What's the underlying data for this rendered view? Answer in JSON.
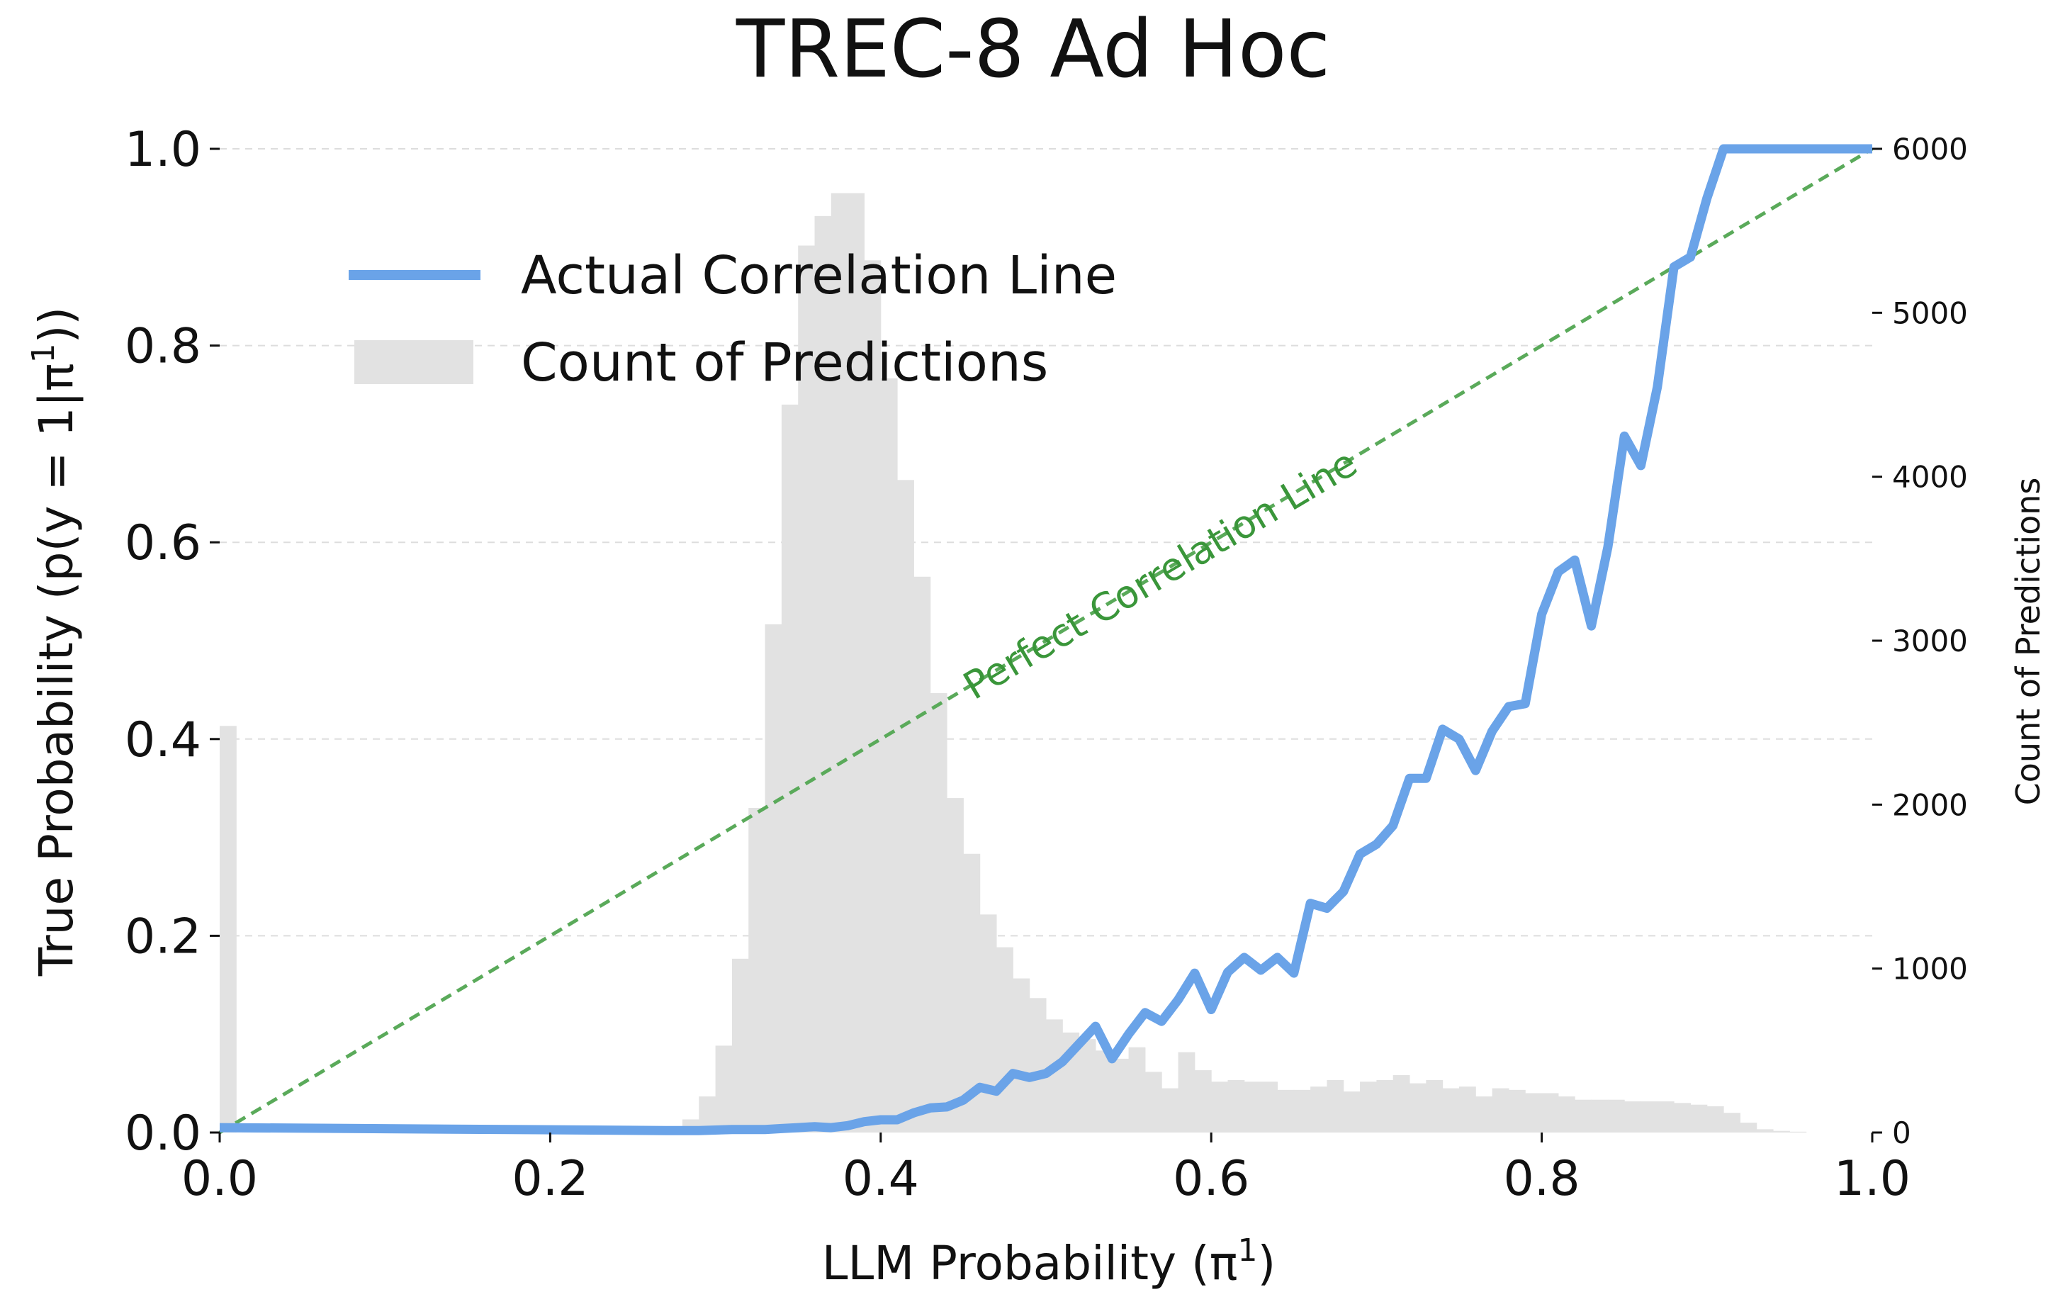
{
  "chart_data": {
    "type": "line",
    "title": "TREC-8 Ad Hoc",
    "xlabel": "LLM Probability (π",
    "xlabel_sup": "1",
    "xlabel_close": ")",
    "ylabel": "True Probability (p(y = 1|π",
    "ylabel_sup": "1",
    "ylabel_close": "))",
    "y2label": "Count of Predictions",
    "xlim": [
      0,
      1
    ],
    "ylim": [
      0,
      1
    ],
    "y2lim": [
      0,
      6000
    ],
    "x_ticks": [
      "0.0",
      "0.2",
      "0.4",
      "0.6",
      "0.8",
      "1.0"
    ],
    "y_ticks": [
      "0.0",
      "0.2",
      "0.4",
      "0.6",
      "0.8",
      "1.0"
    ],
    "y2_ticks": [
      "0",
      "1000",
      "2000",
      "3000",
      "4000",
      "5000",
      "6000"
    ],
    "grid": true,
    "legend": {
      "position": "upper-left",
      "entries": [
        {
          "label": "Actual Correlation Line",
          "kind": "line",
          "color": "#6aa3e8"
        },
        {
          "label": "Count of Predictions",
          "kind": "patch",
          "color": "#e2e2e2"
        }
      ]
    },
    "annotation": {
      "text": "Perfect Correlation Line",
      "x": 0.57,
      "y": 0.565
    },
    "colors": {
      "actual": "#6aa3e8",
      "perfect": "#5aaa5a",
      "histogram": "#e2e2e2",
      "grid": "#dddddd"
    },
    "series": [
      {
        "name": "Actual Correlation Line",
        "x": [
          0.0,
          0.27,
          0.29,
          0.31,
          0.33,
          0.34,
          0.35,
          0.36,
          0.37,
          0.38,
          0.39,
          0.4,
          0.41,
          0.42,
          0.43,
          0.44,
          0.45,
          0.46,
          0.47,
          0.48,
          0.49,
          0.5,
          0.51,
          0.52,
          0.53,
          0.54,
          0.55,
          0.56,
          0.57,
          0.58,
          0.59,
          0.6,
          0.61,
          0.62,
          0.63,
          0.64,
          0.65,
          0.66,
          0.67,
          0.68,
          0.69,
          0.7,
          0.71,
          0.72,
          0.73,
          0.74,
          0.75,
          0.76,
          0.77,
          0.78,
          0.79,
          0.8,
          0.81,
          0.82,
          0.83,
          0.84,
          0.85,
          0.86,
          0.87,
          0.88,
          0.89,
          0.9,
          0.91,
          1.0
        ],
        "y": [
          0.005,
          0.002,
          0.002,
          0.003,
          0.003,
          0.004,
          0.005,
          0.006,
          0.005,
          0.007,
          0.011,
          0.013,
          0.013,
          0.02,
          0.025,
          0.026,
          0.033,
          0.046,
          0.042,
          0.06,
          0.056,
          0.06,
          0.072,
          0.09,
          0.108,
          0.075,
          0.1,
          0.122,
          0.113,
          0.135,
          0.162,
          0.125,
          0.163,
          0.178,
          0.165,
          0.178,
          0.162,
          0.233,
          0.228,
          0.245,
          0.283,
          0.293,
          0.312,
          0.36,
          0.36,
          0.41,
          0.4,
          0.368,
          0.408,
          0.433,
          0.436,
          0.527,
          0.57,
          0.582,
          0.515,
          0.595,
          0.708,
          0.678,
          0.758,
          0.88,
          0.89,
          0.95,
          1.0,
          1.0
        ]
      },
      {
        "name": "Perfect Correlation Line",
        "x": [
          0,
          1
        ],
        "y": [
          0,
          1
        ]
      }
    ],
    "histogram": {
      "name": "Count of Predictions",
      "bin_width": 0.01,
      "bin_starts": [
        0.0,
        0.01,
        0.02,
        0.03,
        0.04,
        0.05,
        0.06,
        0.07,
        0.08,
        0.09,
        0.1,
        0.11,
        0.12,
        0.13,
        0.14,
        0.15,
        0.16,
        0.17,
        0.18,
        0.19,
        0.2,
        0.21,
        0.22,
        0.23,
        0.24,
        0.25,
        0.26,
        0.27,
        0.28,
        0.29,
        0.3,
        0.31,
        0.32,
        0.33,
        0.34,
        0.35,
        0.36,
        0.37,
        0.38,
        0.39,
        0.4,
        0.41,
        0.42,
        0.43,
        0.44,
        0.45,
        0.46,
        0.47,
        0.48,
        0.49,
        0.5,
        0.51,
        0.52,
        0.53,
        0.54,
        0.55,
        0.56,
        0.57,
        0.58,
        0.59,
        0.6,
        0.61,
        0.62,
        0.63,
        0.64,
        0.65,
        0.66,
        0.67,
        0.68,
        0.69,
        0.7,
        0.71,
        0.72,
        0.73,
        0.74,
        0.75,
        0.76,
        0.77,
        0.78,
        0.79,
        0.8,
        0.81,
        0.82,
        0.83,
        0.84,
        0.85,
        0.86,
        0.87,
        0.88,
        0.89,
        0.9,
        0.91,
        0.92,
        0.93,
        0.94,
        0.95,
        0.96,
        0.97,
        0.98,
        0.99
      ],
      "counts": [
        2480,
        0,
        0,
        0,
        0,
        0,
        0,
        0,
        0,
        0,
        0,
        0,
        0,
        0,
        0,
        0,
        0,
        0,
        0,
        0,
        0,
        0,
        0,
        0,
        0,
        0,
        0,
        30,
        80,
        220,
        530,
        1060,
        1980,
        3100,
        4440,
        5410,
        5590,
        5730,
        5730,
        5320,
        4600,
        3980,
        3390,
        2680,
        2040,
        1700,
        1330,
        1130,
        940,
        820,
        690,
        610,
        570,
        500,
        450,
        520,
        370,
        270,
        490,
        380,
        310,
        320,
        310,
        310,
        260,
        260,
        280,
        320,
        250,
        310,
        320,
        350,
        300,
        320,
        270,
        280,
        220,
        270,
        260,
        240,
        240,
        220,
        200,
        200,
        200,
        190,
        190,
        190,
        180,
        170,
        160,
        120,
        60,
        20,
        10,
        5,
        0,
        0,
        0,
        0,
        0,
        0
      ]
    }
  }
}
